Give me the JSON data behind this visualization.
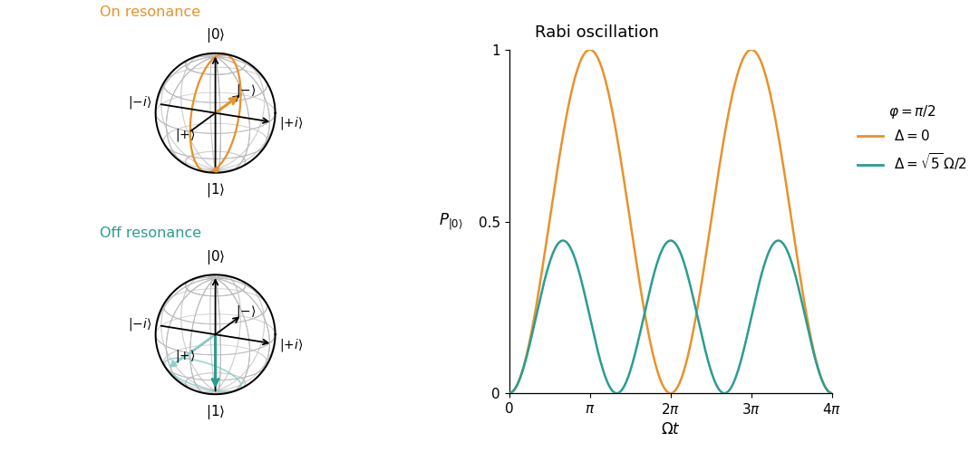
{
  "title": "Rabi oscillation",
  "xlabel": "$\\Omega t$",
  "ylabel": "$P_{|0\\rangle}$",
  "orange_color": "#E8922A",
  "teal_color": "#2A9D8F",
  "light_teal_color": "#8DCFC9",
  "black_color": "#1a1a1a",
  "gray_color": "#BBBBBB",
  "on_resonance_label": "On resonance",
  "off_resonance_label": "Off resonance",
  "legend_phi": "$\\varphi = \\pi/2$",
  "legend_delta0": "$\\Delta = 0$",
  "legend_delta_sqrt5": "$\\Delta = \\sqrt{5}\\,\\Omega/2$",
  "xticks": [
    0,
    3.14159265,
    6.2831853,
    9.42477796,
    12.56637061
  ],
  "xtick_labels": [
    "0",
    "$\\pi$",
    "$2\\pi$",
    "$3\\pi$",
    "$4\\pi$"
  ],
  "ylim": [
    0,
    1
  ],
  "xlim": [
    0,
    12.56637061
  ],
  "az_deg": 25,
  "el_deg": 20,
  "sphere_scale": 0.82
}
